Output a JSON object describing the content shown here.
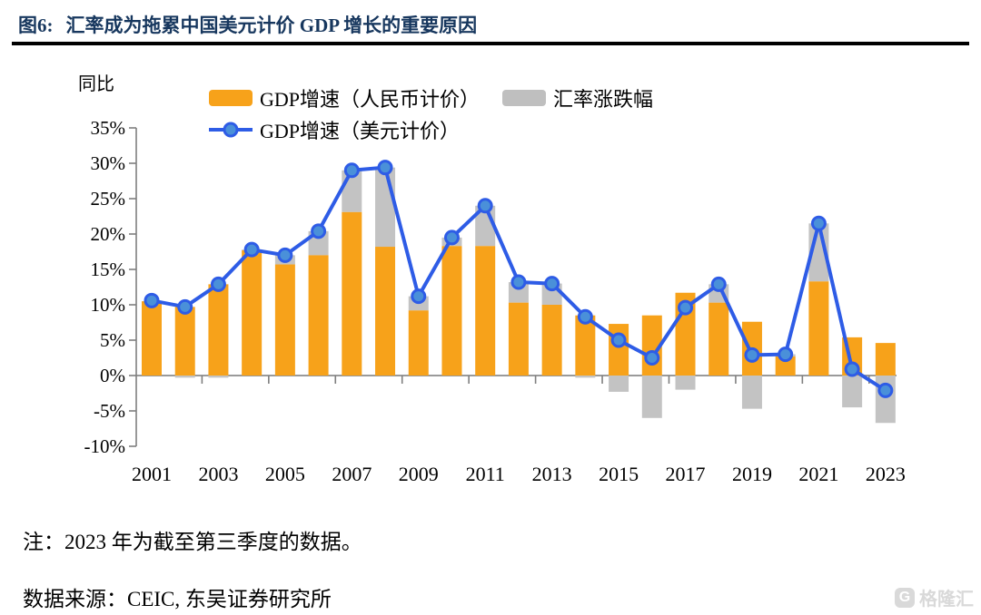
{
  "figure": {
    "title_tag": "图6:",
    "title_text": "汇率成为拖累中国美元计价 GDP 增长的重要原因",
    "title_color": "#17375e",
    "unit_label": "同比",
    "note": "注：2023 年为截至第三季度的数据。",
    "source": "数据来源：CEIC, 东吴证券研究所",
    "watermark_text": "格隆汇",
    "watermark_icon_letter": "G"
  },
  "legend": {
    "items": [
      {
        "label": "GDP增速（人民币计价）",
        "type": "bar",
        "color": "#f7a21a"
      },
      {
        "label": "汇率涨跌幅",
        "type": "bar",
        "color": "#bfbfbf"
      },
      {
        "label": "GDP增速（美元计价）",
        "type": "line",
        "color": "#2e5ce6"
      }
    ]
  },
  "chart_data": {
    "type": "bar",
    "subtype": "stacked-bar-plus-line-combo",
    "title": "汇率成为拖累中国美元计价 GDP 增长的重要原因",
    "xlabel": "",
    "ylabel": "同比",
    "ylim": [
      -10,
      35
    ],
    "ytick_values": [
      35,
      30,
      25,
      20,
      15,
      10,
      5,
      0,
      -5,
      -10
    ],
    "ytick_labels": [
      "35%",
      "30%",
      "25%",
      "20%",
      "15%",
      "10%",
      "5%",
      "0%",
      "-5%",
      "-10%"
    ],
    "xtick_labels": [
      "2001",
      "2003",
      "2005",
      "2007",
      "2009",
      "2011",
      "2013",
      "2015",
      "2017",
      "2019",
      "2021",
      "2023"
    ],
    "grid": false,
    "legend_position": "top",
    "categories": [
      "2001",
      "2002",
      "2003",
      "2004",
      "2005",
      "2006",
      "2007",
      "2008",
      "2009",
      "2010",
      "2011",
      "2012",
      "2013",
      "2014",
      "2015",
      "2016",
      "2017",
      "2018",
      "2019",
      "2020",
      "2021",
      "2022",
      "2023"
    ],
    "series": [
      {
        "name": "GDP增速（人民币计价）",
        "type": "bar",
        "color": "#f7a21a",
        "values": [
          10.5,
          9.7,
          12.9,
          17.7,
          15.7,
          17.0,
          23.1,
          18.2,
          9.2,
          18.3,
          18.3,
          10.3,
          10.0,
          8.5,
          7.3,
          8.5,
          11.7,
          10.3,
          7.6,
          2.7,
          13.3,
          5.4,
          4.6
        ]
      },
      {
        "name": "汇率涨跌幅",
        "type": "bar",
        "color": "#c3c3c3",
        "values": [
          0.0,
          -0.3,
          -0.3,
          0.1,
          1.3,
          3.4,
          5.9,
          11.2,
          2.0,
          1.2,
          5.7,
          2.9,
          3.0,
          -0.3,
          -2.3,
          -6.0,
          -2.0,
          2.6,
          -4.7,
          0.3,
          8.2,
          -4.5,
          -6.7
        ]
      },
      {
        "name": "GDP增速（美元计价）",
        "type": "line",
        "color": "#2e5ce6",
        "marker_fill": "#4a90d9",
        "values": [
          10.6,
          9.7,
          12.9,
          17.8,
          17.0,
          20.4,
          29.0,
          29.4,
          11.2,
          19.5,
          24.0,
          13.2,
          13.0,
          8.3,
          5.0,
          2.5,
          9.6,
          12.9,
          2.9,
          3.0,
          21.5,
          0.9,
          -2.1
        ]
      }
    ]
  }
}
